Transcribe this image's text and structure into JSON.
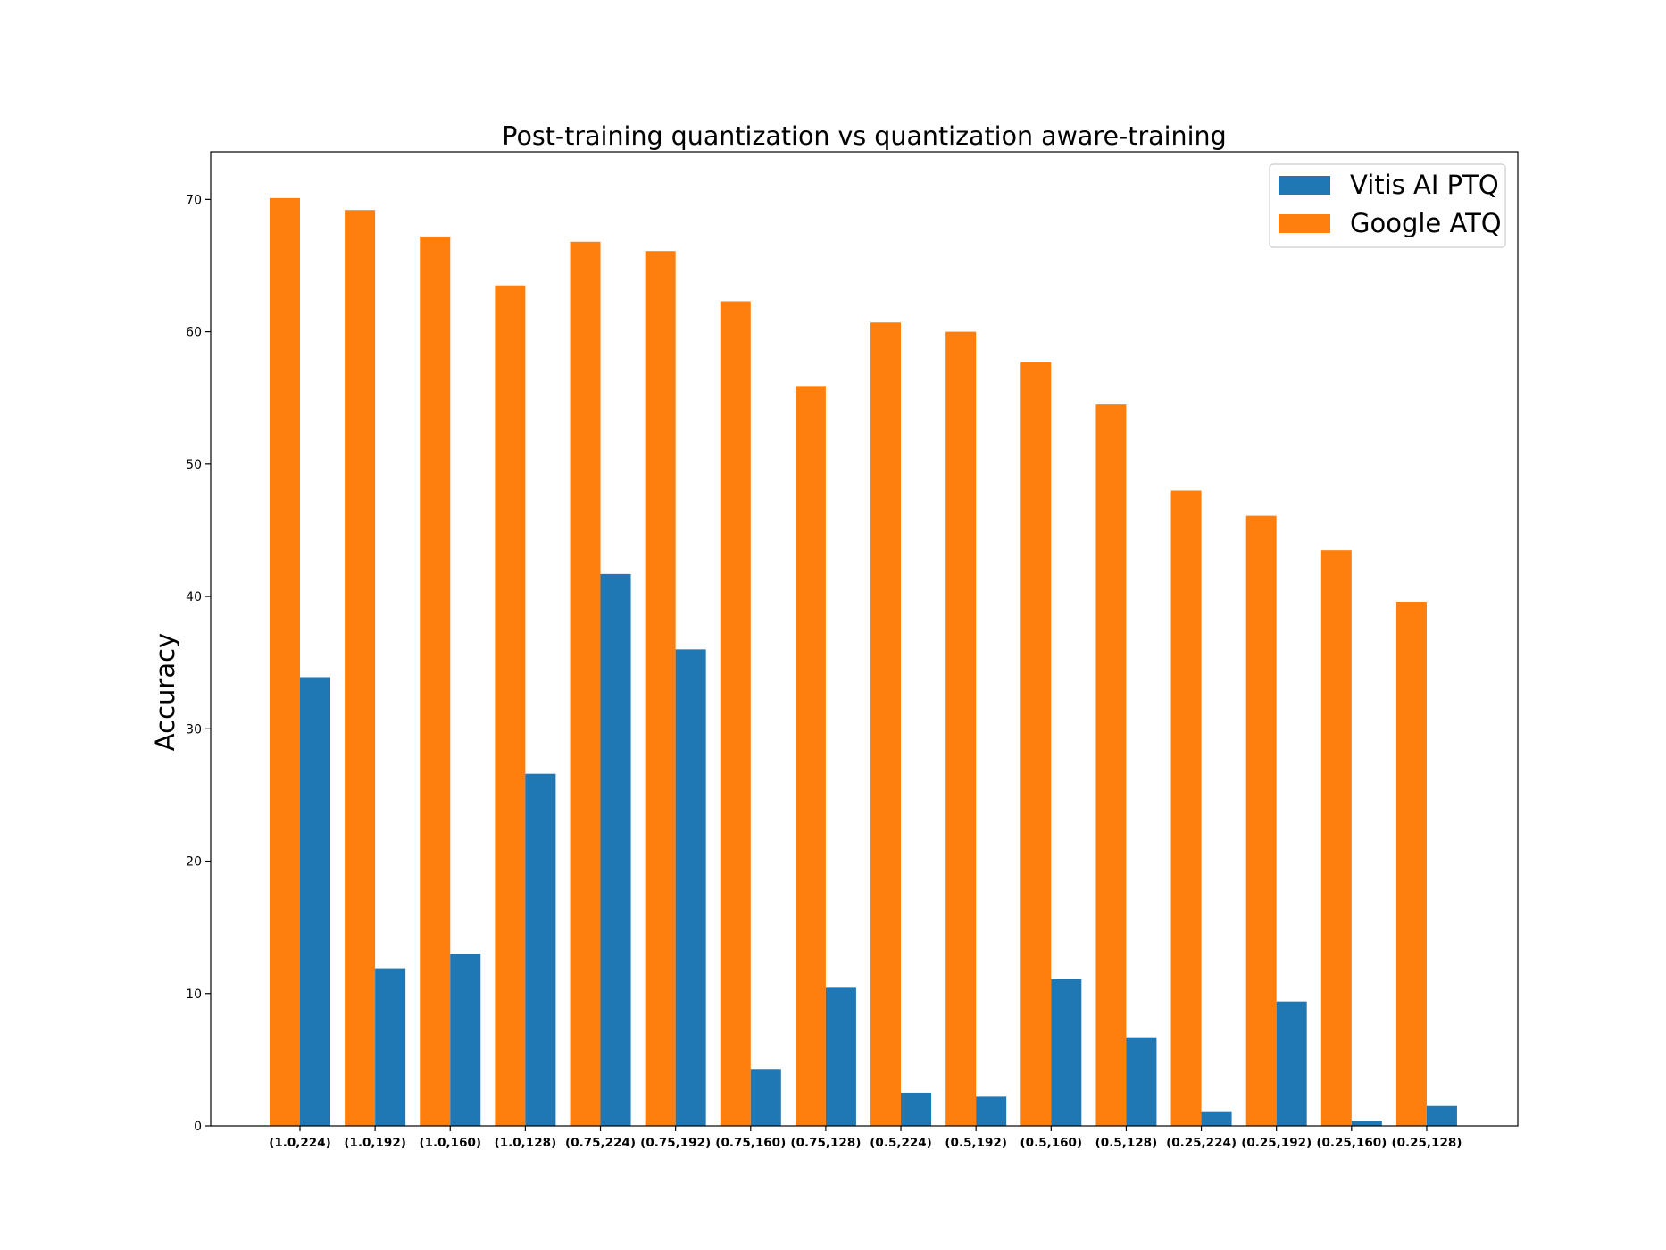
{
  "chart_data": {
    "type": "bar",
    "title": "Post-training quantization vs quantization aware-training",
    "xlabel": "",
    "ylabel": "Accuracy",
    "ylim": [
      0,
      73.6
    ],
    "yticks": [
      0,
      10,
      20,
      30,
      40,
      50,
      60,
      70
    ],
    "grid": false,
    "legend_position": "top-right",
    "categories": [
      "(1.0,224)",
      "(1.0,192)",
      "(1.0,160)",
      "(1.0,128)",
      "(0.75,224)",
      "(0.75,192)",
      "(0.75,160)",
      "(0.75,128)",
      "(0.5,224)",
      "(0.5,192)",
      "(0.5,160)",
      "(0.5,128)",
      "(0.25,224)",
      "(0.25,192)",
      "(0.25,160)",
      "(0.25,128)"
    ],
    "series": [
      {
        "name": "Vitis AI PTQ",
        "color": "#1f77b4",
        "values": [
          33.9,
          11.9,
          13.0,
          26.6,
          41.7,
          36.0,
          4.3,
          10.5,
          2.5,
          2.2,
          11.1,
          6.7,
          1.1,
          9.4,
          0.4,
          1.5
        ]
      },
      {
        "name": "Google ATQ",
        "color": "#ff7f0e",
        "values": [
          70.1,
          69.2,
          67.2,
          63.5,
          66.8,
          66.1,
          62.3,
          55.9,
          60.7,
          60.0,
          57.7,
          54.5,
          48.0,
          46.1,
          43.5,
          39.6
        ]
      }
    ]
  }
}
